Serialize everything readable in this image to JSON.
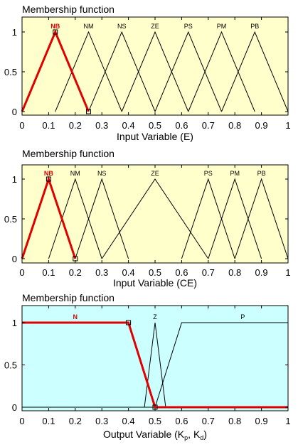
{
  "chart_data": [
    {
      "type": "line",
      "title": "Membership function",
      "xlabel": "Input Variable (E)",
      "xlim": [
        0,
        1
      ],
      "ylim": [
        0,
        1
      ],
      "xticks": [
        "0",
        "0.1",
        "0.2",
        "0.3",
        "0.4",
        "0.5",
        "0.6",
        "0.7",
        "0.8",
        "0.9",
        "1"
      ],
      "yticks": [
        "0",
        "0.5",
        "1"
      ],
      "background": "#ffffcc",
      "highlight_color": "#e00000",
      "line_color": "#000000",
      "series": [
        {
          "name": "NB",
          "x": [
            0,
            0.125,
            0.25
          ],
          "y": [
            0,
            1,
            0
          ],
          "highlighted": true
        },
        {
          "name": "NM",
          "x": [
            0.125,
            0.25,
            0.375
          ],
          "y": [
            0,
            1,
            0
          ]
        },
        {
          "name": "NS",
          "x": [
            0.25,
            0.375,
            0.5
          ],
          "y": [
            0,
            1,
            0
          ]
        },
        {
          "name": "ZE",
          "x": [
            0.375,
            0.5,
            0.625
          ],
          "y": [
            0,
            1,
            0
          ]
        },
        {
          "name": "PS",
          "x": [
            0.5,
            0.625,
            0.75
          ],
          "y": [
            0,
            1,
            0
          ]
        },
        {
          "name": "PM",
          "x": [
            0.625,
            0.75,
            0.875
          ],
          "y": [
            0,
            1,
            0
          ]
        },
        {
          "name": "PB",
          "x": [
            0.75,
            0.875,
            1.0
          ],
          "y": [
            0,
            1,
            0
          ]
        }
      ]
    },
    {
      "type": "line",
      "title": "Membership function",
      "xlabel": "Input Variable (CE)",
      "xlim": [
        0,
        1
      ],
      "ylim": [
        0,
        1
      ],
      "xticks": [
        "0",
        "0.1",
        "0.2",
        "0.3",
        "0.4",
        "0.5",
        "0.6",
        "0.7",
        "0.8",
        "0.9",
        "1"
      ],
      "yticks": [
        "0",
        "0.5",
        "1"
      ],
      "background": "#ffffcc",
      "highlight_color": "#e00000",
      "line_color": "#000000",
      "series": [
        {
          "name": "NB",
          "x": [
            0,
            0.1,
            0.2
          ],
          "y": [
            0,
            1,
            0
          ],
          "highlighted": true
        },
        {
          "name": "NM",
          "x": [
            0.1,
            0.2,
            0.3
          ],
          "y": [
            0,
            1,
            0
          ]
        },
        {
          "name": "NS",
          "x": [
            0.2,
            0.3,
            0.4
          ],
          "y": [
            0,
            1,
            0
          ]
        },
        {
          "name": "ZE",
          "x": [
            0.3,
            0.5,
            0.7
          ],
          "y": [
            0,
            1,
            0
          ]
        },
        {
          "name": "PS",
          "x": [
            0.6,
            0.7,
            0.8
          ],
          "y": [
            0,
            1,
            0
          ]
        },
        {
          "name": "PM",
          "x": [
            0.7,
            0.8,
            0.9
          ],
          "y": [
            0,
            1,
            0
          ]
        },
        {
          "name": "PB",
          "x": [
            0.8,
            0.9,
            1.0
          ],
          "y": [
            0,
            1,
            0
          ]
        }
      ]
    },
    {
      "type": "line",
      "title": "Membership function",
      "xlabel_prefix": "Output Variable (K",
      "xlabel_sub1": "p",
      "xlabel_mid": ", K",
      "xlabel_sub2": "d",
      "xlabel_suffix": ")",
      "xlim": [
        0,
        1
      ],
      "ylim": [
        0,
        1
      ],
      "xticks": [
        "0",
        "0.1",
        "0.2",
        "0.3",
        "0.4",
        "0.5",
        "0.6",
        "0.7",
        "0.8",
        "0.9",
        "1"
      ],
      "yticks": [
        "0",
        "0.5",
        "1"
      ],
      "background": "#ccffff",
      "highlight_color": "#e00000",
      "line_color": "#000000",
      "series": [
        {
          "name": "N",
          "x": [
            0,
            0.4,
            0.5,
            1.0
          ],
          "y": [
            1,
            1,
            0,
            0
          ],
          "highlighted": true
        },
        {
          "name": "Z",
          "x": [
            0,
            0.46,
            0.5,
            0.54,
            1.0
          ],
          "y": [
            0,
            0,
            1,
            0,
            0
          ]
        },
        {
          "name": "P",
          "x": [
            0,
            0.5,
            0.6,
            1.0
          ],
          "y": [
            0,
            0,
            1,
            1
          ]
        }
      ]
    }
  ]
}
